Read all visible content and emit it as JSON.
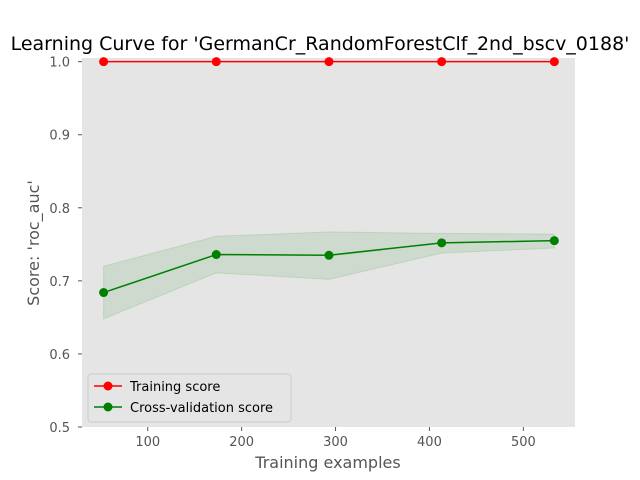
{
  "chart_data": {
    "type": "line",
    "title": "Learning Curve for 'GermanCr_RandomForestClf_2nd_bscv_0188'",
    "xlabel": "Training examples",
    "ylabel": "Score: 'roc_auc'",
    "xlim": [
      30,
      555
    ],
    "ylim": [
      0.5,
      1.005
    ],
    "xticks": [
      100,
      200,
      300,
      400,
      500
    ],
    "yticks": [
      0.5,
      0.6,
      0.7,
      0.8,
      0.9,
      1.0
    ],
    "xtick_labels": [
      "100",
      "200",
      "300",
      "400",
      "500"
    ],
    "ytick_labels": [
      "0.5",
      "0.6",
      "0.7",
      "0.8",
      "0.9",
      "1.0"
    ],
    "grid": false,
    "legend_position": "lower-left",
    "x": [
      53,
      173,
      293,
      413,
      533
    ],
    "series": [
      {
        "name": "Training score",
        "color": "#ff0000",
        "values": [
          1.0,
          1.0,
          1.0,
          1.0,
          1.0
        ],
        "band_lower": [
          1.0,
          1.0,
          1.0,
          1.0,
          1.0
        ],
        "band_upper": [
          1.0,
          1.0,
          1.0,
          1.0,
          1.0
        ]
      },
      {
        "name": "Cross-validation score",
        "color": "#008000",
        "values": [
          0.684,
          0.736,
          0.735,
          0.752,
          0.755
        ],
        "band_lower": [
          0.648,
          0.711,
          0.702,
          0.738,
          0.745
        ],
        "band_upper": [
          0.72,
          0.761,
          0.767,
          0.765,
          0.764
        ]
      }
    ]
  }
}
